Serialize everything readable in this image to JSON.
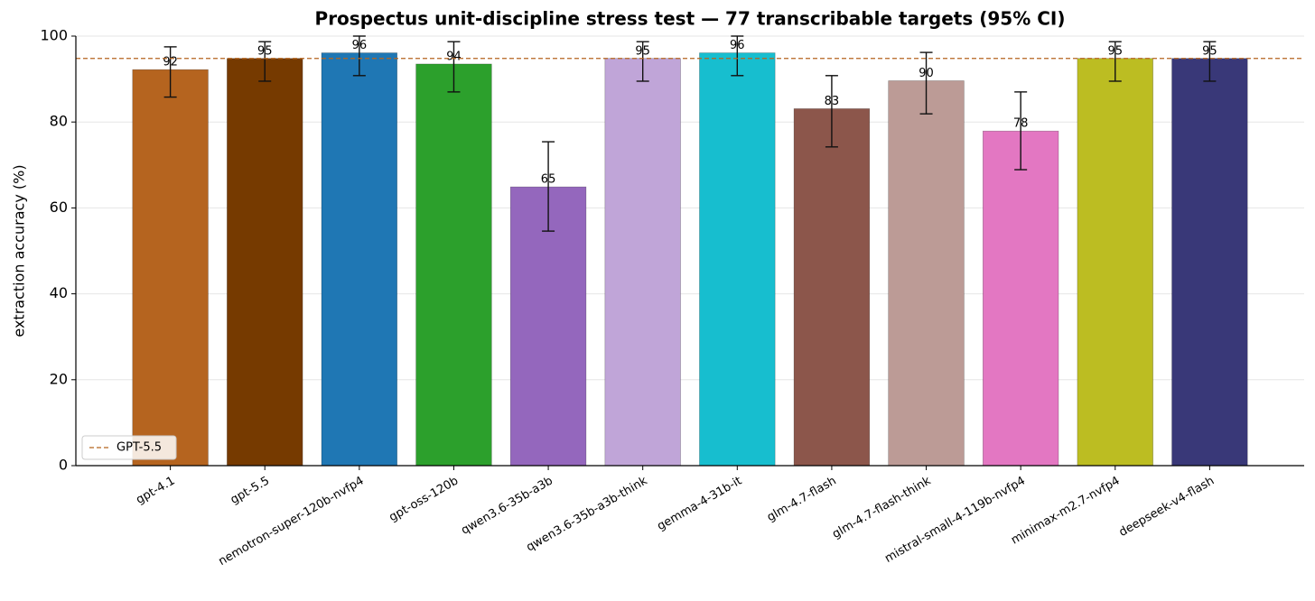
{
  "chart_data": {
    "type": "bar",
    "title": "Prospectus unit-discipline stress test — 77 transcribable targets (95% CI)",
    "y_label": "extraction accuracy (%)",
    "categories": [
      "gpt-4.1",
      "gpt-5.5",
      "nemotron-super-120b-nvfp4",
      "gpt-oss-120b",
      "qwen3.6-35b-a3b",
      "qwen3.6-35b-a3b-think",
      "gemma-4-31b-it",
      "glm-4.7-flash",
      "glm-4.7-flash-think",
      "mistral-small-4-119b-nvfp4",
      "minimax-m2.7-nvfp4",
      "deepseek-v4-flash"
    ],
    "values": [
      92.2,
      94.8,
      96.1,
      93.5,
      64.9,
      94.8,
      96.1,
      83.1,
      89.6,
      77.9,
      94.8,
      94.8
    ],
    "value_labels": [
      "92",
      "95",
      "96",
      "94",
      "65",
      "95",
      "96",
      "83",
      "90",
      "78",
      "95",
      "95"
    ],
    "error_low": [
      85.8,
      89.5,
      90.8,
      87.0,
      54.6,
      89.5,
      90.8,
      74.2,
      81.9,
      68.9,
      89.5,
      89.5
    ],
    "error_high": [
      97.5,
      98.7,
      100,
      98.7,
      75.4,
      98.7,
      100,
      90.8,
      96.2,
      87.0,
      98.7,
      98.7
    ],
    "colors": [
      "#b5641f",
      "#763a00",
      "#1f77b4",
      "#2ca02c",
      "#9467bd",
      "#c0a5d8",
      "#17becf",
      "#8c564b",
      "#bc9b96",
      "#e377c2",
      "#bcbd22",
      "#393878"
    ],
    "reference_line": {
      "value": 94.8,
      "label": "GPT-5.5",
      "color": "#b5641f"
    },
    "legend": "lower left",
    "ylim": [
      0,
      100
    ],
    "yticks": [
      0,
      20,
      40,
      60,
      80,
      100
    ],
    "grid": true
  }
}
